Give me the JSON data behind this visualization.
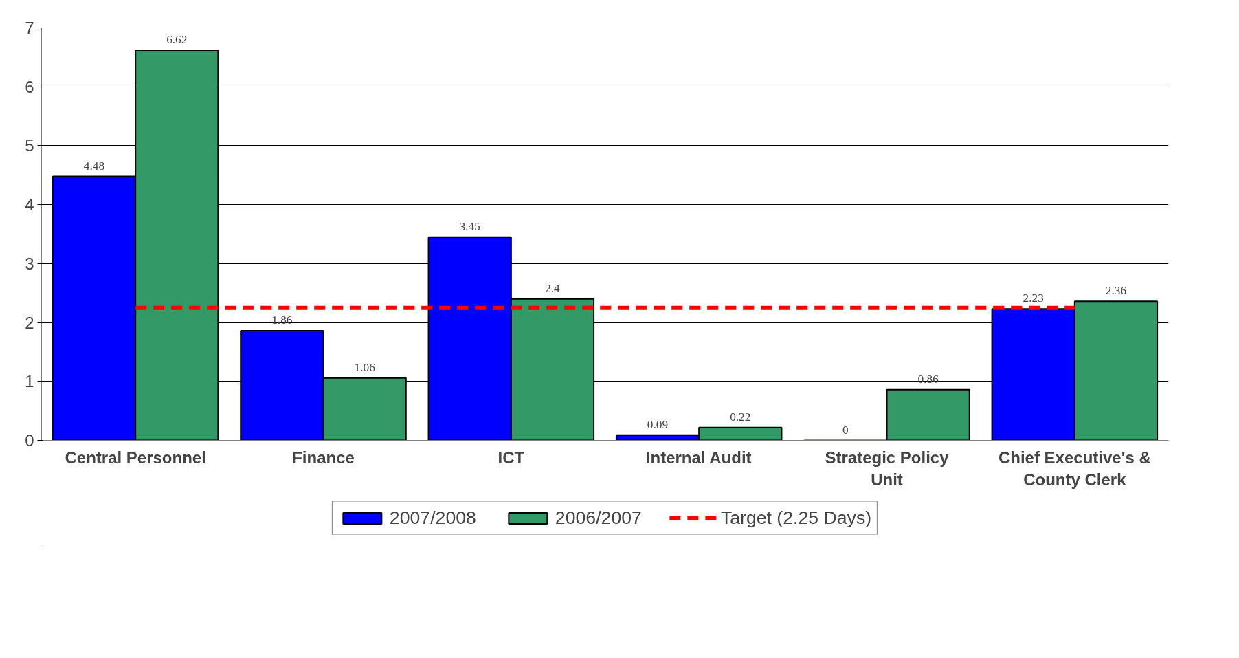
{
  "chart_data": {
    "type": "bar",
    "categories": [
      "Central Personnel",
      "Finance",
      "ICT",
      "Internal Audit",
      "Strategic Policy\nUnit",
      "Chief Executive's &\nCounty Clerk"
    ],
    "series": [
      {
        "name": "2007/2008",
        "color": "#0000ff",
        "values": [
          4.48,
          1.86,
          3.45,
          0.09,
          0,
          2.23
        ],
        "data_labels": true
      },
      {
        "name": "2006/2007",
        "color": "#339966",
        "values": [
          6.62,
          1.06,
          2.4,
          0.22,
          0.86,
          2.36
        ],
        "data_labels": true
      },
      {
        "name": "Target (2.25 Days)",
        "type": "line",
        "color": "#ff0000",
        "line_style": "dashed",
        "values": [
          2.25,
          2.25,
          2.25,
          2.25,
          2.25,
          2.25
        ]
      }
    ],
    "ylim": [
      0,
      7
    ],
    "yticks": [
      0,
      1,
      2,
      3,
      4,
      5,
      6,
      7
    ],
    "grid": "y",
    "legend": "bottom"
  }
}
